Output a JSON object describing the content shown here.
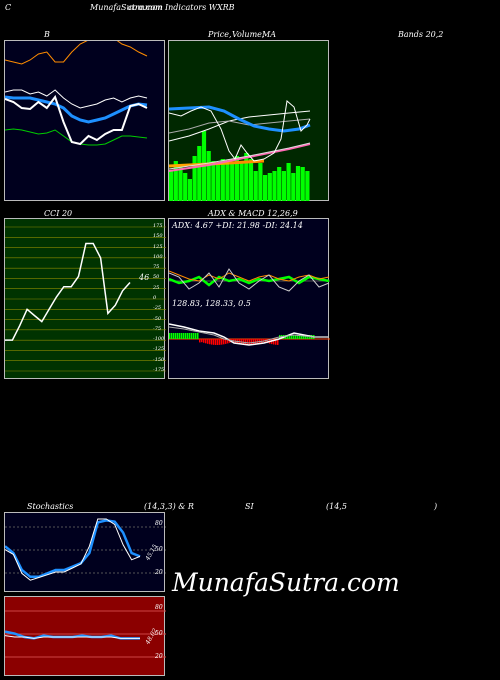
{
  "header": {
    "left_letter": "C",
    "title": "MunafaSutra.com",
    "subtitle": "common Indicators WXRB"
  },
  "row1": {
    "label_b": "B",
    "label_price": "Price,",
    "label_volume": "Volume,",
    "label_ma": "MA",
    "label_bands": "Bands 20,2"
  },
  "row2": {
    "label_cci": "CCI 20",
    "label_adx": "ADX  & MACD 12,26,9",
    "cci_value": "46",
    "adx_readout": "ADX: 4.67 +DI: 21.98 -DI: 24.14",
    "macd_readout": "128.83,  128.33,  0.5",
    "cci_ticks": [
      "175",
      "150",
      "125",
      "100",
      "75",
      "50",
      "25",
      "0",
      "-25",
      "-50",
      "-75",
      "-100",
      "-125",
      "-150",
      "-175"
    ]
  },
  "row3": {
    "label_stoch": "Stochastics",
    "label_params": "(14,3,3) & R",
    "label_si": "SI",
    "label_rsi_params": "(14,5",
    "label_close": ")",
    "stoch_ticks": [
      "80",
      "50",
      "20"
    ],
    "stoch_value": "45.15",
    "rsi_ticks": [
      "80",
      "50",
      "20"
    ],
    "rsi_value": "48.02"
  },
  "watermark": "MunafaSutra.com",
  "colors": {
    "panel_dark": "#00001e",
    "price_bg": "#002800",
    "cci_bg": "#003300",
    "rsi_bg": "#8b0000",
    "volume_green": "#00ff00",
    "ma_blue": "#1e90ff"
  },
  "chart_data": [
    {
      "type": "line",
      "series": [
        {
          "values": [
            72,
            73,
            72,
            70,
            68,
            69,
            72,
            66,
            60,
            58,
            57,
            57,
            58,
            62,
            66,
            66,
            65,
            64
          ]
        },
        {
          "values": [
            105,
            104,
            104,
            104,
            102,
            100,
            98,
            94,
            86,
            82,
            80,
            82,
            84,
            88,
            92,
            96,
            98,
            97
          ]
        },
        {
          "values": [
            103,
            100,
            94,
            93,
            100,
            94,
            105,
            80,
            60,
            58,
            66,
            62,
            68,
            72,
            72,
            96,
            98,
            94
          ]
        },
        {
          "values": [
            110,
            112,
            112,
            108,
            110,
            106,
            112,
            104,
            98,
            94,
            96,
            98,
            102,
            104,
            100,
            104,
            106,
            104
          ]
        },
        {
          "values": [
            142,
            140,
            138,
            142,
            148,
            150,
            140,
            140,
            150,
            158,
            162,
            165,
            168,
            164,
            158,
            155,
            150,
            146
          ]
        }
      ]
    },
    {
      "type": "bar",
      "values": [
        30,
        40,
        35,
        28,
        22,
        45,
        55,
        70,
        50,
        40,
        38,
        42,
        40,
        38,
        45,
        40,
        48,
        42,
        30,
        38,
        26,
        28,
        30,
        34,
        30,
        38,
        28,
        35,
        34,
        30
      ]
    },
    {
      "type": "line",
      "ylim": [
        -175,
        175
      ],
      "series": [
        {
          "values": [
            -100,
            -100,
            -65,
            -25,
            -40,
            -55,
            -25,
            5,
            30,
            30,
            55,
            135,
            135,
            100,
            -35,
            -15,
            20,
            40
          ]
        }
      ]
    },
    {
      "type": "line",
      "ylim": [
        0,
        100
      ],
      "series": [
        {
          "values": [
            60,
            50,
            25,
            15,
            15,
            20,
            25,
            25,
            30,
            35,
            50,
            95,
            98,
            96,
            80,
            50,
            45
          ]
        },
        {
          "values": [
            55,
            48,
            20,
            10,
            14,
            18,
            22,
            22,
            28,
            34,
            60,
            100,
            100,
            92,
            62,
            40,
            45
          ]
        }
      ]
    },
    {
      "type": "line",
      "ylim": [
        0,
        100
      ],
      "series": [
        {
          "values": [
            58,
            55,
            50,
            48,
            52,
            50,
            50,
            50,
            52,
            50,
            50,
            52,
            48,
            48,
            48
          ]
        },
        {
          "values": [
            52,
            50,
            50,
            48,
            50,
            50,
            50,
            50,
            50,
            50,
            50,
            50,
            48,
            48,
            48
          ]
        }
      ]
    }
  ]
}
